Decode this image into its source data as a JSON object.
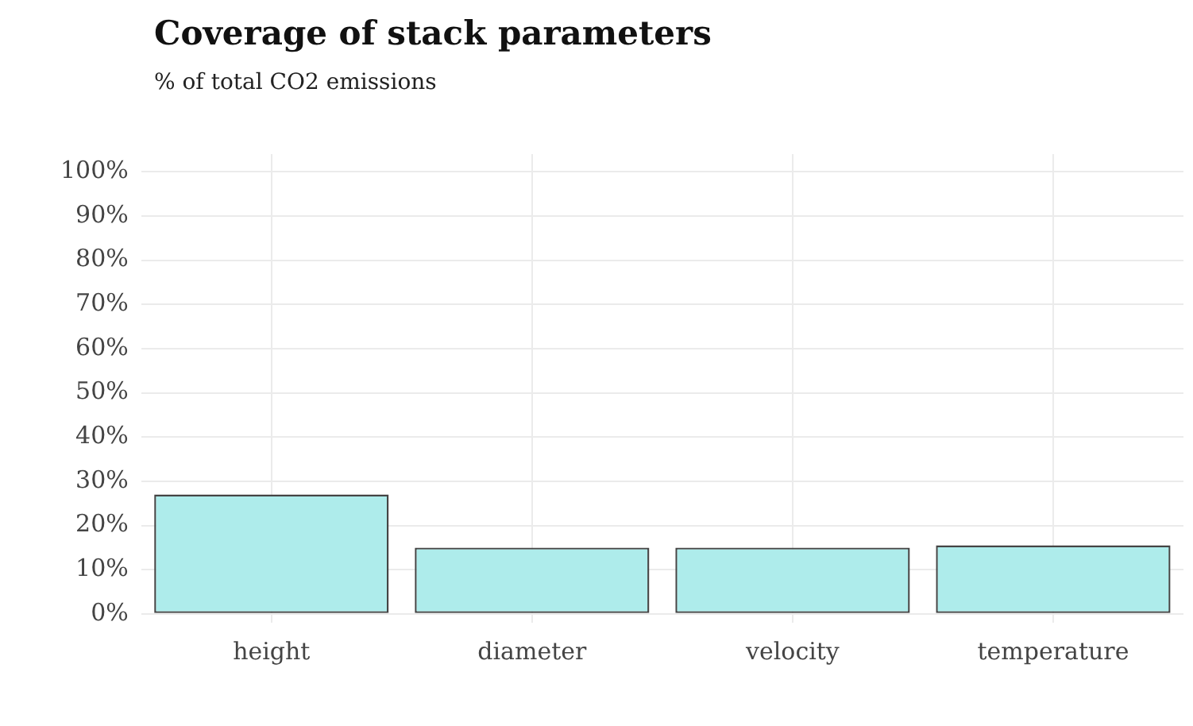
{
  "chart_data": {
    "type": "bar",
    "title": "Coverage of stack parameters",
    "subtitle": "% of total CO2 emissions",
    "categories": [
      "height",
      "diameter",
      "velocity",
      "temperature"
    ],
    "series": [
      {
        "color": "#aeeceb",
        "values": [
          27,
          15,
          15,
          15.5
        ]
      }
    ],
    "ylim": [
      -2,
      104
    ],
    "yticks": [
      {
        "value": 0,
        "label": "0%"
      },
      {
        "value": 10,
        "label": "10%"
      },
      {
        "value": 20,
        "label": "20%"
      },
      {
        "value": 30,
        "label": "30%"
      },
      {
        "value": 40,
        "label": "40%"
      },
      {
        "value": 50,
        "label": "50%"
      },
      {
        "value": 60,
        "label": "60%"
      },
      {
        "value": 70,
        "label": "70%"
      },
      {
        "value": 80,
        "label": "80%"
      },
      {
        "value": 90,
        "label": "90%"
      },
      {
        "value": 100,
        "label": "100%"
      }
    ],
    "grid": true,
    "legend": false
  }
}
